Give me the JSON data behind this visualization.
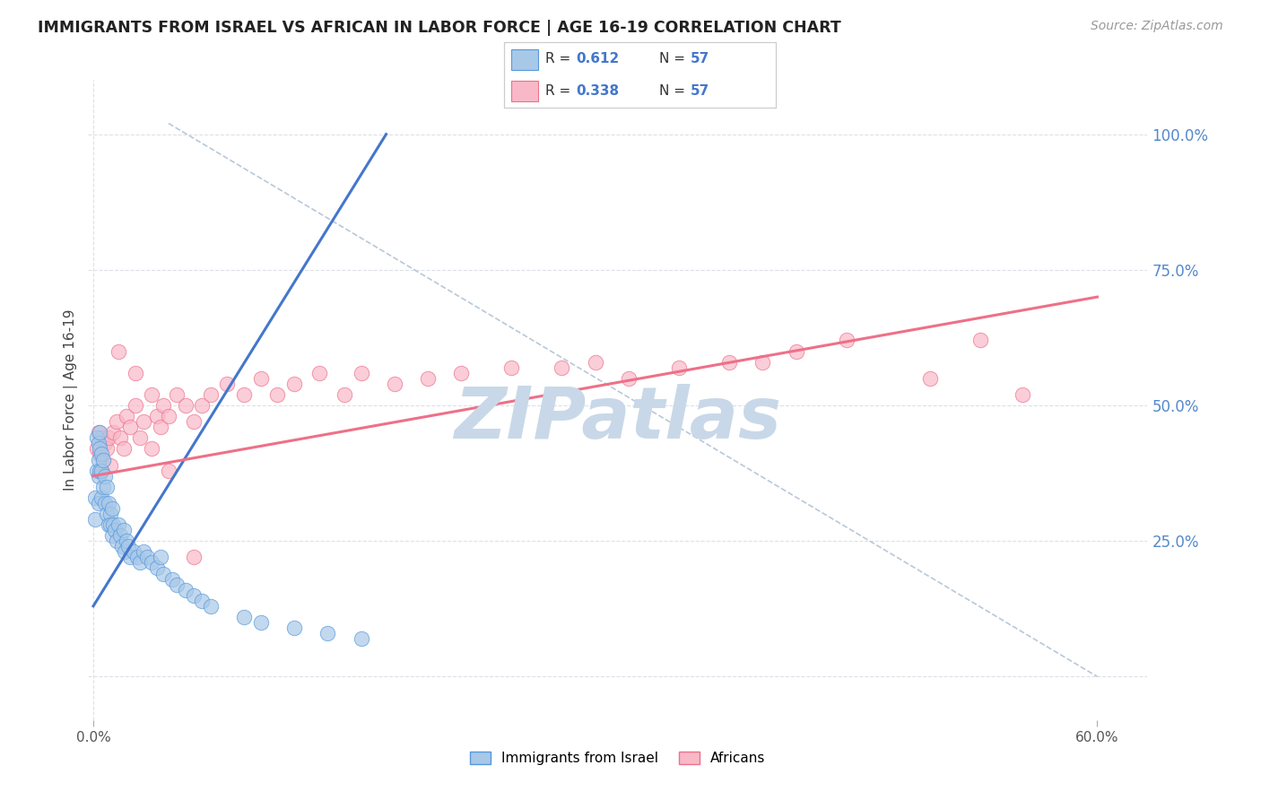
{
  "title": "IMMIGRANTS FROM ISRAEL VS AFRICAN IN LABOR FORCE | AGE 16-19 CORRELATION CHART",
  "source": "Source: ZipAtlas.com",
  "ylabel": "In Labor Force | Age 16-19",
  "x_ticks": [
    0.0,
    0.6
  ],
  "x_tick_labels": [
    "0.0%",
    "60.0%"
  ],
  "y_ticks": [
    0.0,
    0.25,
    0.5,
    0.75,
    1.0
  ],
  "y_tick_labels": [
    "",
    "25.0%",
    "50.0%",
    "75.0%",
    "100.0%"
  ],
  "xlim": [
    -0.003,
    0.63
  ],
  "ylim": [
    -0.08,
    1.1
  ],
  "background_color": "#ffffff",
  "grid_color": "#dde0e8",
  "israel_fill_color": "#a8c8e8",
  "israel_edge_color": "#5599dd",
  "african_fill_color": "#f8b8c8",
  "african_edge_color": "#ee7088",
  "israel_line_color": "#4477cc",
  "african_line_color": "#ee7088",
  "diagonal_color": "#b8c8d8",
  "watermark": "ZIPatlas",
  "watermark_color": "#c8d8e8",
  "legend_r1": "0.612",
  "legend_n1": "57",
  "legend_r2": "0.338",
  "legend_n2": "57",
  "israel_scatter_x": [
    0.001,
    0.001,
    0.002,
    0.002,
    0.003,
    0.003,
    0.003,
    0.003,
    0.004,
    0.004,
    0.004,
    0.005,
    0.005,
    0.005,
    0.006,
    0.006,
    0.007,
    0.007,
    0.008,
    0.008,
    0.009,
    0.009,
    0.01,
    0.01,
    0.011,
    0.011,
    0.012,
    0.013,
    0.014,
    0.015,
    0.016,
    0.017,
    0.018,
    0.019,
    0.02,
    0.021,
    0.022,
    0.024,
    0.026,
    0.028,
    0.03,
    0.032,
    0.035,
    0.038,
    0.04,
    0.042,
    0.047,
    0.05,
    0.055,
    0.06,
    0.065,
    0.07,
    0.09,
    0.1,
    0.12,
    0.14,
    0.16
  ],
  "israel_scatter_y": [
    0.33,
    0.29,
    0.44,
    0.38,
    0.43,
    0.4,
    0.37,
    0.32,
    0.45,
    0.42,
    0.38,
    0.41,
    0.38,
    0.33,
    0.4,
    0.35,
    0.37,
    0.32,
    0.35,
    0.3,
    0.32,
    0.28,
    0.3,
    0.28,
    0.31,
    0.26,
    0.28,
    0.27,
    0.25,
    0.28,
    0.26,
    0.24,
    0.27,
    0.23,
    0.25,
    0.24,
    0.22,
    0.23,
    0.22,
    0.21,
    0.23,
    0.22,
    0.21,
    0.2,
    0.22,
    0.19,
    0.18,
    0.17,
    0.16,
    0.15,
    0.14,
    0.13,
    0.11,
    0.1,
    0.09,
    0.08,
    0.07
  ],
  "african_scatter_x": [
    0.002,
    0.003,
    0.004,
    0.005,
    0.006,
    0.007,
    0.008,
    0.009,
    0.01,
    0.012,
    0.014,
    0.016,
    0.018,
    0.02,
    0.022,
    0.025,
    0.028,
    0.03,
    0.035,
    0.038,
    0.04,
    0.042,
    0.045,
    0.05,
    0.055,
    0.06,
    0.065,
    0.07,
    0.08,
    0.09,
    0.1,
    0.11,
    0.12,
    0.135,
    0.15,
    0.16,
    0.18,
    0.2,
    0.22,
    0.25,
    0.28,
    0.3,
    0.32,
    0.35,
    0.38,
    0.4,
    0.42,
    0.45,
    0.5,
    0.53,
    0.555,
    0.005,
    0.015,
    0.025,
    0.035,
    0.045,
    0.06
  ],
  "african_scatter_y": [
    0.42,
    0.45,
    0.41,
    0.44,
    0.4,
    0.43,
    0.42,
    0.44,
    0.39,
    0.45,
    0.47,
    0.44,
    0.42,
    0.48,
    0.46,
    0.5,
    0.44,
    0.47,
    0.52,
    0.48,
    0.46,
    0.5,
    0.48,
    0.52,
    0.5,
    0.47,
    0.5,
    0.52,
    0.54,
    0.52,
    0.55,
    0.52,
    0.54,
    0.56,
    0.52,
    0.56,
    0.54,
    0.55,
    0.56,
    0.57,
    0.57,
    0.58,
    0.55,
    0.57,
    0.58,
    0.58,
    0.6,
    0.62,
    0.55,
    0.62,
    0.52,
    0.38,
    0.6,
    0.56,
    0.42,
    0.38,
    0.22
  ],
  "israel_line_x": [
    0.0,
    0.175
  ],
  "israel_line_y": [
    0.13,
    1.0
  ],
  "african_line_x": [
    0.0,
    0.6
  ],
  "african_line_y": [
    0.37,
    0.7
  ],
  "diagonal_line_x": [
    0.045,
    0.6
  ],
  "diagonal_line_y": [
    1.02,
    0.0
  ]
}
